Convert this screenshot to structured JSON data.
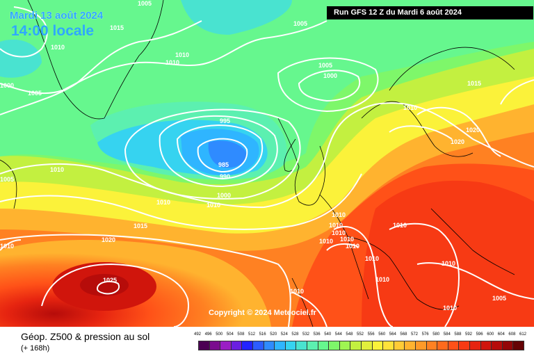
{
  "header": {
    "date": "Mardi 13 août 2024",
    "time": "14:00 locale",
    "run": "Run GFS 12 Z du Mardi 6 août 2024"
  },
  "copyright": "Copyright © 2024 Meteociel.fr",
  "footer": {
    "title": "Géop. Z500 & pression au sol",
    "subtitle": "(+ 168h)"
  },
  "legend": {
    "ticks": [
      "492",
      "496",
      "500",
      "504",
      "508",
      "512",
      "516",
      "520",
      "524",
      "528",
      "532",
      "536",
      "540",
      "544",
      "548",
      "552",
      "556",
      "560",
      "564",
      "568",
      "572",
      "576",
      "580",
      "584",
      "588",
      "592",
      "596",
      "600",
      "604",
      "608",
      "612"
    ],
    "colors": [
      "#4b0053",
      "#7a0b8e",
      "#9a1ec4",
      "#6a1fe0",
      "#2323ff",
      "#2c5cff",
      "#2f8bff",
      "#2fb5ff",
      "#36d3f0",
      "#49e3d0",
      "#5cf0b0",
      "#66f78e",
      "#7ef76a",
      "#9ff552",
      "#c3f040",
      "#e2ef3c",
      "#fbf23a",
      "#ffe23a",
      "#ffcb36",
      "#ffb32f",
      "#ff9a28",
      "#ff8122",
      "#ff6a1c",
      "#ff5118",
      "#f73a14",
      "#e62410",
      "#d0150c",
      "#b60c0a",
      "#930608",
      "#650305"
    ]
  },
  "isobar_labels": [
    {
      "text": "1005"
    },
    {
      "text": "1015"
    },
    {
      "text": "1010"
    },
    {
      "text": "1010"
    },
    {
      "text": "1010"
    },
    {
      "text": "1000"
    },
    {
      "text": "1005"
    },
    {
      "text": "1005"
    },
    {
      "text": "1000"
    },
    {
      "text": "1005"
    },
    {
      "text": "995"
    },
    {
      "text": "985"
    },
    {
      "text": "990"
    },
    {
      "text": "1000"
    },
    {
      "text": "1010"
    },
    {
      "text": "1005"
    },
    {
      "text": "1010"
    },
    {
      "text": "1015"
    },
    {
      "text": "1020"
    },
    {
      "text": "1025"
    },
    {
      "text": "1010"
    },
    {
      "text": "1010"
    },
    {
      "text": "1015"
    },
    {
      "text": "1010"
    },
    {
      "text": "1020"
    },
    {
      "text": "1020"
    },
    {
      "text": "1010"
    },
    {
      "text": "1010"
    },
    {
      "text": "1010"
    },
    {
      "text": "1010"
    },
    {
      "text": "1010"
    },
    {
      "text": "1010"
    },
    {
      "text": "1010"
    },
    {
      "text": "1010"
    },
    {
      "text": "1010"
    },
    {
      "text": "1010"
    },
    {
      "text": "1010"
    },
    {
      "text": "1005"
    },
    {
      "text": "1010"
    }
  ]
}
